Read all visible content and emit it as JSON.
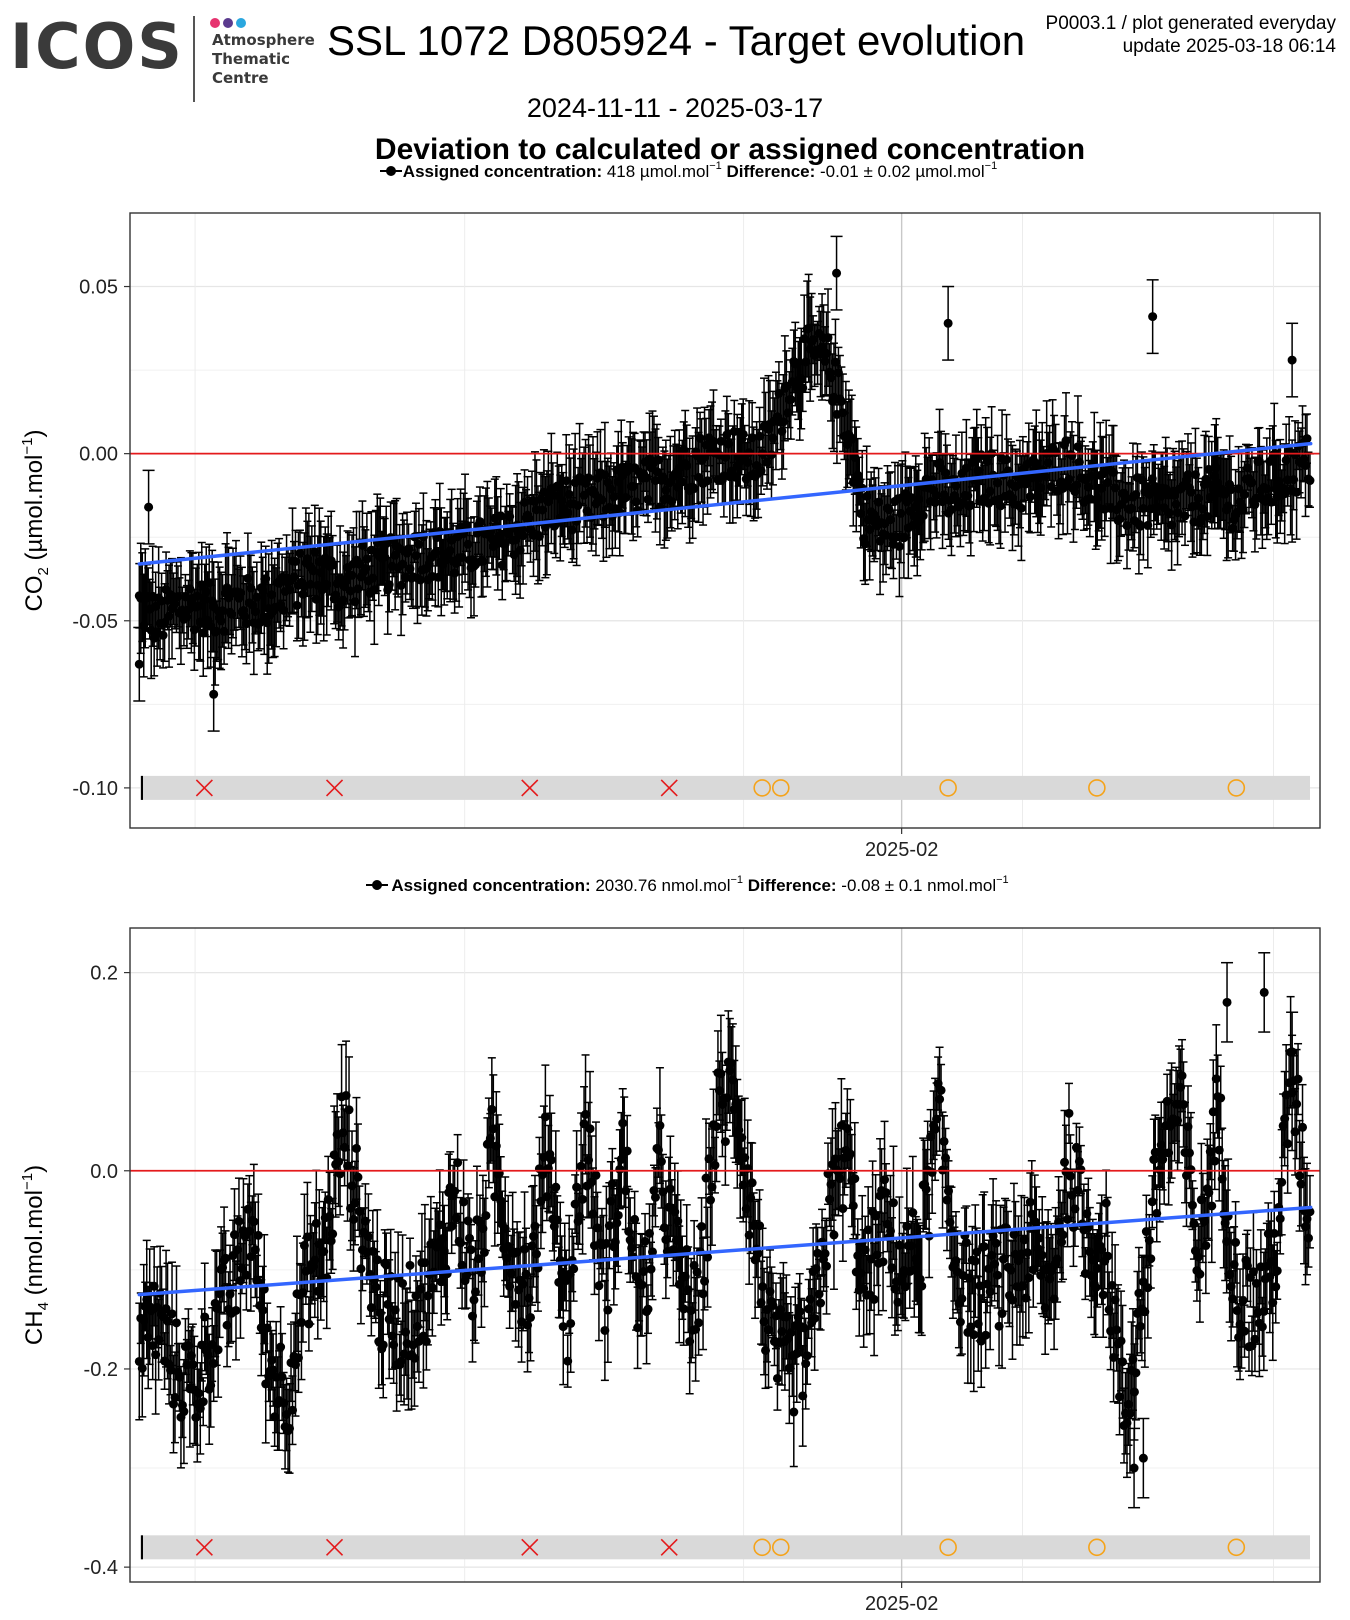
{
  "logo": {
    "word": "ICOS",
    "lines": [
      "Atmosphere",
      "Thematic",
      "Centre"
    ],
    "dot_colors": [
      "#e6336f",
      "#5a3a8e",
      "#2aa7df"
    ]
  },
  "header": {
    "title": "SSL 1072 D805924 - Target evolution",
    "meta_line1": "P0003.1 / plot generated everyday",
    "meta_line2": "update  2025-03-18 06:14",
    "date_range": "2024-11-11 - 2025-03-17",
    "subtitle": "Deviation to calculated or assigned concentration"
  },
  "colors": {
    "points": "#000000",
    "trend": "#3366ff",
    "zero_line": "#e41a1c",
    "cross": "#e41a1c",
    "circle": "#f5a31a",
    "band": "#d9d9d9"
  },
  "chart_data": [
    {
      "type": "scatter",
      "panel": "co2",
      "legend": {
        "label_bold": "Assigned concentration:",
        "assigned_value": "418",
        "unit": "µmol.mol",
        "unit_exp": "−1",
        "diff_bold": "Difference:",
        "diff_value": "-0.01 ± 0.02",
        "diff_unit": "µmol.mol",
        "diff_unit_exp": "−1"
      },
      "ylabel_main": "CO",
      "ylabel_sub": "2",
      "ylabel_tail": " (µmol.mol",
      "ylabel_exp": "−1",
      "ylabel_end": ")",
      "x_range": [
        "2024-11-10",
        "2025-03-18"
      ],
      "ylim": [
        -0.112,
        0.072
      ],
      "y_ticks": [
        0.05,
        0.0,
        -0.05,
        -0.1
      ],
      "y_tick_labels": [
        "0.05",
        "0.00",
        "-0.05",
        "-0.10"
      ],
      "x_ticks": [
        "2025-02-01"
      ],
      "x_tick_labels": [
        "2025-02"
      ],
      "reference_line_y": 0.0,
      "trend": {
        "start": [
          "2024-11-11",
          -0.033
        ],
        "end": [
          "2025-03-17",
          0.003
        ]
      },
      "error_bar_typical": 0.011,
      "series_daily_means": [
        [
          "2024-11-11",
          -0.045
        ],
        [
          "2024-11-13",
          -0.05
        ],
        [
          "2024-11-15",
          -0.046
        ],
        [
          "2024-11-17",
          -0.045
        ],
        [
          "2024-11-19",
          -0.047
        ],
        [
          "2024-11-21",
          -0.044
        ],
        [
          "2024-11-23",
          -0.045
        ],
        [
          "2024-11-25",
          -0.044
        ],
        [
          "2024-11-27",
          -0.04
        ],
        [
          "2024-11-29",
          -0.036
        ],
        [
          "2024-12-01",
          -0.036
        ],
        [
          "2024-12-03",
          -0.04
        ],
        [
          "2024-12-05",
          -0.035
        ],
        [
          "2024-12-07",
          -0.034
        ],
        [
          "2024-12-09",
          -0.032
        ],
        [
          "2024-12-11",
          -0.03
        ],
        [
          "2024-12-13",
          -0.03
        ],
        [
          "2024-12-15",
          -0.03
        ],
        [
          "2024-12-17",
          -0.028
        ],
        [
          "2024-12-19",
          -0.027
        ],
        [
          "2024-12-21",
          -0.024
        ],
        [
          "2024-12-23",
          -0.02
        ],
        [
          "2024-12-25",
          -0.017
        ],
        [
          "2024-12-27",
          -0.015
        ],
        [
          "2024-12-29",
          -0.015
        ],
        [
          "2024-12-31",
          -0.013
        ],
        [
          "2025-01-02",
          -0.011
        ],
        [
          "2025-01-04",
          -0.01
        ],
        [
          "2025-01-06",
          -0.008
        ],
        [
          "2025-01-08",
          -0.006
        ],
        [
          "2025-01-10",
          -0.002
        ],
        [
          "2025-01-12",
          0.0
        ],
        [
          "2025-01-14",
          0.0
        ],
        [
          "2025-01-16",
          -0.003
        ],
        [
          "2025-01-18",
          0.004
        ],
        [
          "2025-01-20",
          0.022
        ],
        [
          "2025-01-22",
          0.03
        ],
        [
          "2025-01-24",
          0.028
        ],
        [
          "2025-01-26",
          0.01
        ],
        [
          "2025-01-28",
          -0.019
        ],
        [
          "2025-01-30",
          -0.022
        ],
        [
          "2025-02-01",
          -0.02
        ],
        [
          "2025-02-03",
          -0.012
        ],
        [
          "2025-02-05",
          -0.01
        ],
        [
          "2025-02-07",
          -0.015
        ],
        [
          "2025-02-09",
          -0.008
        ],
        [
          "2025-02-11",
          -0.007
        ],
        [
          "2025-02-13",
          -0.01
        ],
        [
          "2025-02-15",
          -0.009
        ],
        [
          "2025-02-17",
          -0.005
        ],
        [
          "2025-02-19",
          -0.002
        ],
        [
          "2025-02-21",
          -0.008
        ],
        [
          "2025-02-23",
          -0.012
        ],
        [
          "2025-02-25",
          -0.015
        ],
        [
          "2025-02-27",
          -0.015
        ],
        [
          "2025-03-01",
          -0.016
        ],
        [
          "2025-03-03",
          -0.015
        ],
        [
          "2025-03-05",
          -0.013
        ],
        [
          "2025-03-07",
          -0.012
        ],
        [
          "2025-03-09",
          -0.015
        ],
        [
          "2025-03-11",
          -0.01
        ],
        [
          "2025-03-13",
          -0.008
        ],
        [
          "2025-03-15",
          -0.005
        ],
        [
          "2025-03-17",
          -0.002
        ]
      ],
      "labeled_outliers": [
        [
          "2024-11-11",
          -0.063
        ],
        [
          "2024-11-12",
          -0.016
        ],
        [
          "2024-11-19",
          -0.072
        ],
        [
          "2025-01-25",
          0.054
        ],
        [
          "2025-02-06",
          0.039
        ],
        [
          "2025-02-28",
          0.041
        ],
        [
          "2025-03-15",
          0.028
        ]
      ],
      "events_x": [
        "2024-11-18",
        "2024-12-02",
        "2024-12-23",
        "2025-01-07",
        "2025-01-17",
        "2025-01-19",
        "2025-02-06",
        "2025-02-22",
        "2025-03-09"
      ],
      "event_markers": [
        "line",
        "cross",
        "cross",
        "cross",
        "cross",
        "circle",
        "circle",
        "circle",
        "circle",
        "circle"
      ],
      "event_y": -0.1
    },
    {
      "type": "scatter",
      "panel": "ch4",
      "legend": {
        "label_bold": "Assigned concentration:",
        "assigned_value": "2030.76",
        "unit": "nmol.mol",
        "unit_exp": "−1",
        "diff_bold": "Difference:",
        "diff_value": "-0.08 ± 0.1",
        "diff_unit": "nmol.mol",
        "diff_unit_exp": "−1"
      },
      "ylabel_main": "CH",
      "ylabel_sub": "4",
      "ylabel_tail": " (nmol.mol",
      "ylabel_exp": "−1",
      "ylabel_end": ")",
      "x_range": [
        "2024-11-10",
        "2025-03-18"
      ],
      "ylim": [
        -0.415,
        0.245
      ],
      "y_ticks": [
        0.2,
        0.0,
        -0.2,
        -0.4
      ],
      "y_tick_labels": [
        "0.2",
        "0.0",
        "-0.2",
        "-0.4"
      ],
      "x_ticks": [
        "2025-02-01"
      ],
      "x_tick_labels": [
        "2025-02"
      ],
      "reference_line_y": 0.0,
      "trend": {
        "start": [
          "2024-11-11",
          -0.125
        ],
        "end": [
          "2025-03-17",
          -0.037
        ]
      },
      "error_bar_typical": 0.04,
      "series_daily_means": [
        [
          "2024-11-11",
          -0.17
        ],
        [
          "2024-11-13",
          -0.15
        ],
        [
          "2024-11-15",
          -0.2
        ],
        [
          "2024-11-17",
          -0.22
        ],
        [
          "2024-11-19",
          -0.16
        ],
        [
          "2024-11-21",
          -0.12
        ],
        [
          "2024-11-23",
          -0.05
        ],
        [
          "2024-11-25",
          -0.2
        ],
        [
          "2024-11-27",
          -0.22
        ],
        [
          "2024-11-29",
          -0.11
        ],
        [
          "2024-12-01",
          -0.08
        ],
        [
          "2024-12-03",
          0.05
        ],
        [
          "2024-12-05",
          -0.06
        ],
        [
          "2024-12-07",
          -0.14
        ],
        [
          "2024-12-09",
          -0.15
        ],
        [
          "2024-12-11",
          -0.14
        ],
        [
          "2024-12-13",
          -0.1
        ],
        [
          "2024-12-15",
          -0.02
        ],
        [
          "2024-12-17",
          -0.12
        ],
        [
          "2024-12-19",
          0.02
        ],
        [
          "2024-12-21",
          -0.08
        ],
        [
          "2024-12-23",
          -0.12
        ],
        [
          "2024-12-25",
          0.03
        ],
        [
          "2024-12-27",
          -0.15
        ],
        [
          "2024-12-29",
          0.04
        ],
        [
          "2024-12-31",
          -0.12
        ],
        [
          "2025-01-02",
          0.02
        ],
        [
          "2025-01-04",
          -0.15
        ],
        [
          "2025-01-06",
          0.0
        ],
        [
          "2025-01-08",
          -0.1
        ],
        [
          "2025-01-10",
          -0.15
        ],
        [
          "2025-01-12",
          0.05
        ],
        [
          "2025-01-14",
          0.09
        ],
        [
          "2025-01-16",
          -0.05
        ],
        [
          "2025-01-18",
          -0.18
        ],
        [
          "2025-01-20",
          -0.2
        ],
        [
          "2025-01-22",
          -0.18
        ],
        [
          "2025-01-24",
          -0.05
        ],
        [
          "2025-01-26",
          0.02
        ],
        [
          "2025-01-28",
          -0.12
        ],
        [
          "2025-01-30",
          -0.05
        ],
        [
          "2025-02-01",
          -0.1
        ],
        [
          "2025-02-03",
          -0.08
        ],
        [
          "2025-02-05",
          0.05
        ],
        [
          "2025-02-07",
          -0.1
        ],
        [
          "2025-02-09",
          -0.13
        ],
        [
          "2025-02-11",
          -0.11
        ],
        [
          "2025-02-13",
          -0.1
        ],
        [
          "2025-02-15",
          -0.08
        ],
        [
          "2025-02-17",
          -0.12
        ],
        [
          "2025-02-19",
          0.01
        ],
        [
          "2025-02-21",
          -0.07
        ],
        [
          "2025-02-23",
          -0.08
        ],
        [
          "2025-02-25",
          -0.25
        ],
        [
          "2025-02-27",
          -0.12
        ],
        [
          "2025-03-01",
          0.03
        ],
        [
          "2025-03-03",
          0.06
        ],
        [
          "2025-03-05",
          -0.09
        ],
        [
          "2025-03-07",
          0.06
        ],
        [
          "2025-03-09",
          -0.12
        ],
        [
          "2025-03-11",
          -0.14
        ],
        [
          "2025-03-13",
          -0.1
        ],
        [
          "2025-03-15",
          0.1
        ],
        [
          "2025-03-17",
          -0.07
        ]
      ],
      "labeled_outliers": [
        [
          "2025-02-26",
          -0.3
        ],
        [
          "2025-02-27",
          -0.29
        ],
        [
          "2025-03-08",
          0.17
        ],
        [
          "2025-03-12",
          0.18
        ],
        [
          "2025-03-15",
          0.12
        ]
      ],
      "events_x": [
        "2024-11-18",
        "2024-12-02",
        "2024-12-23",
        "2025-01-07",
        "2025-01-17",
        "2025-01-19",
        "2025-02-06",
        "2025-02-22",
        "2025-03-09"
      ],
      "event_markers": [
        "line",
        "cross",
        "cross",
        "cross",
        "cross",
        "circle",
        "circle",
        "circle",
        "circle",
        "circle"
      ],
      "event_y": -0.38
    }
  ]
}
